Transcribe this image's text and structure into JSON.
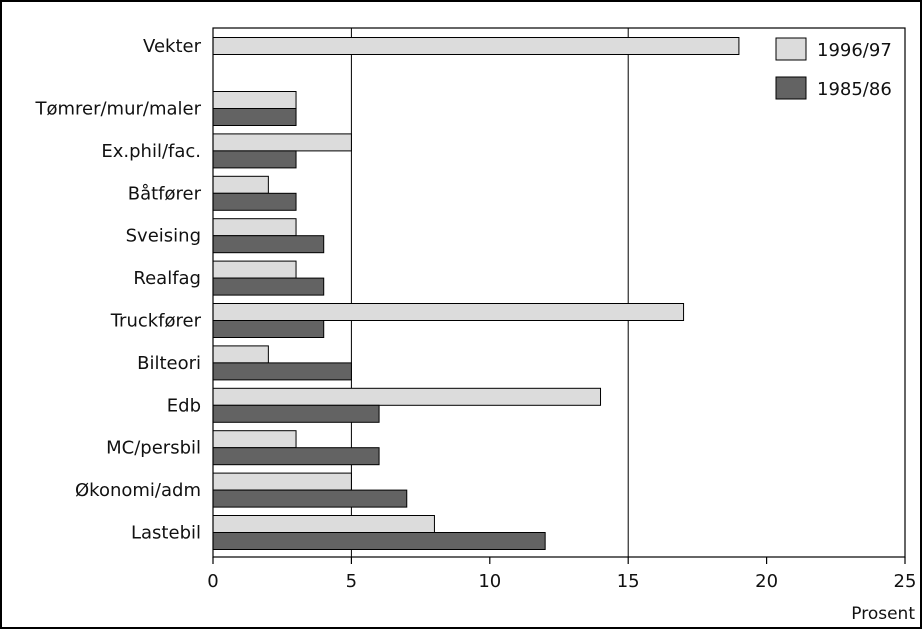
{
  "chart_data": {
    "type": "bar",
    "orientation": "horizontal",
    "title": "",
    "xlabel": "Prosent",
    "ylabel": "",
    "xlim": [
      0,
      25
    ],
    "x_ticks": [
      "0",
      "5",
      "10",
      "15",
      "20",
      "25"
    ],
    "grid": "vertical lines at 5 and 15",
    "legend_position": "top-right",
    "categories": [
      "Vekter",
      "Tømrer/mur/maler",
      "Ex.phil/fac.",
      "Båtfører",
      "Sveising",
      "Realfag",
      "Truckfører",
      "Bilteori",
      "Edb",
      "MC/persbil",
      "Økonomi/adm",
      "Lastebil"
    ],
    "series": [
      {
        "name": "1996/97",
        "color": "#dcdcdc",
        "values": [
          19,
          3,
          5,
          2,
          3,
          3,
          17,
          2,
          14,
          3,
          5,
          8
        ]
      },
      {
        "name": "1985/86",
        "color": "#636363",
        "values": [
          null,
          3,
          3,
          3,
          4,
          4,
          4,
          5,
          6,
          6,
          7,
          12
        ]
      }
    ]
  }
}
